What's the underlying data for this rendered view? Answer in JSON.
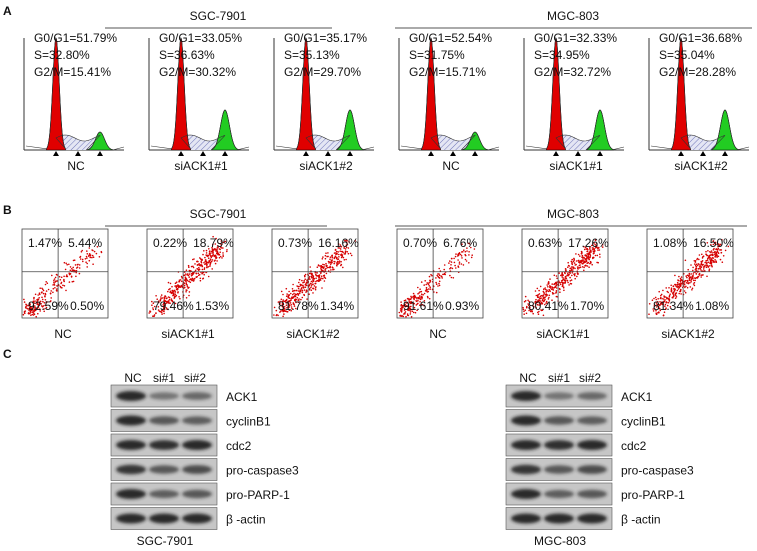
{
  "panel_a": {
    "label": "A",
    "groups": [
      {
        "title": "SGC-7901",
        "plots": [
          {
            "g0g1": "G0/G1=51.79%",
            "s": "S=32.80%",
            "g2m": "G2/M=15.41%",
            "label": "NC"
          },
          {
            "g0g1": "G0/G1=33.05%",
            "s": "S=36.63%",
            "g2m": "G2/M=30.32%",
            "label": "siACK1#1"
          },
          {
            "g0g1": "G0/G1=35.17%",
            "s": "S=35.13%",
            "g2m": "G2/M=29.70%",
            "label": "siACK1#2"
          }
        ]
      },
      {
        "title": "MGC-803",
        "plots": [
          {
            "g0g1": "G0/G1=52.54%",
            "s": "S=31.75%",
            "g2m": "G2/M=15.71%",
            "label": "NC"
          },
          {
            "g0g1": "G0/G1=32.33%",
            "s": "S=34.95%",
            "g2m": "G2/M=32.72%",
            "label": "siACK1#1"
          },
          {
            "g0g1": "G0/G1=36.68%",
            "s": "S=35.04%",
            "g2m": "G2/M=28.28%",
            "label": "siACK1#2"
          }
        ]
      }
    ]
  },
  "panel_b": {
    "label": "B",
    "groups": [
      {
        "title": "SGC-7901",
        "plots": [
          {
            "ul": "1.47%",
            "ur": "5.44%",
            "ll": "92.59%",
            "lr": "0.50%",
            "label": "NC"
          },
          {
            "ul": "0.22%",
            "ur": "18.79%",
            "ll": "79.46%",
            "lr": "1.53%",
            "label": "siACK1#1"
          },
          {
            "ul": "0.73%",
            "ur": "16.16%",
            "ll": "81.78%",
            "lr": "1.34%",
            "label": "siACK1#2"
          }
        ]
      },
      {
        "title": "MGC-803",
        "plots": [
          {
            "ul": "0.70%",
            "ur": "6.76%",
            "ll": "91.61%",
            "lr": "0.93%",
            "label": "NC"
          },
          {
            "ul": "0.63%",
            "ur": "17.26%",
            "ll": "80.41%",
            "lr": "1.70%",
            "label": "siACK1#1"
          },
          {
            "ul": "1.08%",
            "ur": "16.50%",
            "ll": "81.34%",
            "lr": "1.08%",
            "label": "siACK1#2"
          }
        ]
      }
    ]
  },
  "panel_c": {
    "label": "C",
    "blots": [
      {
        "cell_line": "SGC-7901",
        "lanes": [
          "NC",
          "si#1",
          "si#2"
        ],
        "proteins": [
          "ACK1",
          "cyclinB1",
          "cdc2",
          "pro-caspase3",
          "pro-PARP-1",
          "β -actin"
        ]
      },
      {
        "cell_line": "MGC-803",
        "lanes": [
          "NC",
          "si#1",
          "si#2"
        ],
        "proteins": [
          "ACK1",
          "cyclinB1",
          "cdc2",
          "pro-caspase3",
          "pro-PARP-1",
          "β -actin"
        ]
      }
    ]
  }
}
